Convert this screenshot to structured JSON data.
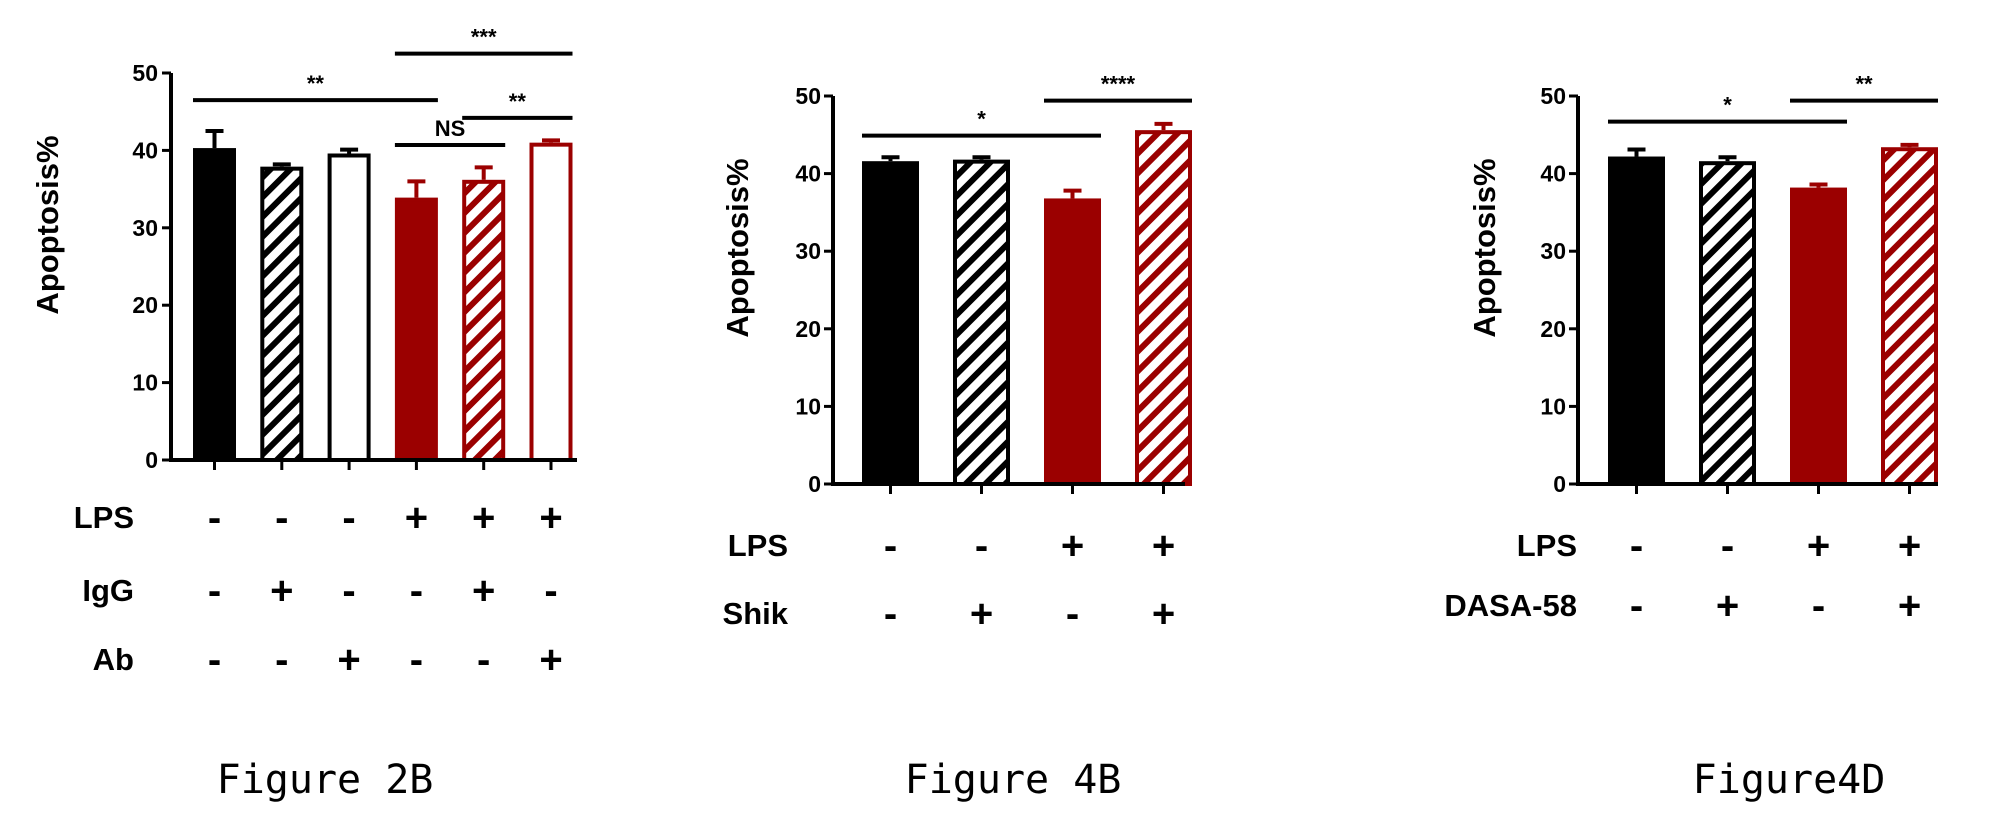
{
  "colors": {
    "black": "#000000",
    "red": "#9b0000",
    "white": "#ffffff"
  },
  "chart_data": [
    {
      "type": "bar",
      "caption": "Figure 2B",
      "ylabel": "Apoptosis%",
      "ylim": [
        0,
        50
      ],
      "yticks": [
        0,
        10,
        20,
        30,
        40,
        50
      ],
      "series": [
        {
          "values": [
            40.3,
            37.9,
            39.6,
            33.9,
            36.2,
            41.0
          ],
          "errors": [
            2.2,
            0.3,
            0.5,
            2.1,
            1.6,
            0.3
          ],
          "styles": [
            {
              "color": "#000000",
              "pattern": "solid"
            },
            {
              "color": "#000000",
              "pattern": "hatch"
            },
            {
              "color": "#000000",
              "pattern": "open"
            },
            {
              "color": "#9b0000",
              "pattern": "solid"
            },
            {
              "color": "#9b0000",
              "pattern": "hatch"
            },
            {
              "color": "#9b0000",
              "pattern": "open"
            }
          ]
        }
      ],
      "conditions": [
        {
          "label": "LPS",
          "signs": [
            "-",
            "-",
            "-",
            "+",
            "+",
            "+"
          ]
        },
        {
          "label": "IgG",
          "signs": [
            "-",
            "+",
            "-",
            "-",
            "+",
            "-"
          ]
        },
        {
          "label": "Ab",
          "signs": [
            "-",
            "-",
            "+",
            "-",
            "-",
            "+"
          ]
        }
      ],
      "comparisons": [
        {
          "from": 0,
          "to": 3,
          "y": 46.5,
          "label": "**"
        },
        {
          "from": 3,
          "to": 5,
          "y": 52.5,
          "label": "***"
        },
        {
          "from": 3,
          "to": 4,
          "y": 40.7,
          "label": "NS"
        },
        {
          "from": 4,
          "to": 5,
          "y": 44.2,
          "label": "**"
        }
      ]
    },
    {
      "type": "bar",
      "caption": "Figure 4B",
      "ylabel": "Apoptosis%",
      "ylim": [
        0,
        50
      ],
      "yticks": [
        0,
        10,
        20,
        30,
        40,
        50
      ],
      "series": [
        {
          "values": [
            41.6,
            41.8,
            36.8,
            45.6
          ],
          "errors": [
            0.5,
            0.3,
            1.0,
            0.8
          ],
          "styles": [
            {
              "color": "#000000",
              "pattern": "solid"
            },
            {
              "color": "#000000",
              "pattern": "hatch"
            },
            {
              "color": "#9b0000",
              "pattern": "solid"
            },
            {
              "color": "#9b0000",
              "pattern": "hatch"
            }
          ]
        }
      ],
      "conditions": [
        {
          "label": "LPS",
          "signs": [
            "-",
            "-",
            "+",
            "+"
          ]
        },
        {
          "label": "Shik",
          "signs": [
            "-",
            "+",
            "-",
            "+"
          ]
        }
      ],
      "comparisons": [
        {
          "from": 0,
          "to": 2,
          "y": 44.9,
          "label": "*"
        },
        {
          "from": 2,
          "to": 3,
          "y": 49.4,
          "label": "****"
        }
      ]
    },
    {
      "type": "bar",
      "caption": "Figure4D",
      "ylabel": "Apoptosis%",
      "ylim": [
        0,
        50
      ],
      "yticks": [
        0,
        10,
        20,
        30,
        40,
        50
      ],
      "series": [
        {
          "values": [
            42.2,
            41.6,
            38.2,
            43.4
          ],
          "errors": [
            0.9,
            0.5,
            0.4,
            0.3
          ],
          "styles": [
            {
              "color": "#000000",
              "pattern": "solid"
            },
            {
              "color": "#000000",
              "pattern": "hatch"
            },
            {
              "color": "#9b0000",
              "pattern": "solid"
            },
            {
              "color": "#9b0000",
              "pattern": "hatch"
            }
          ]
        }
      ],
      "conditions": [
        {
          "label": "LPS",
          "signs": [
            "-",
            "-",
            "+",
            "+"
          ]
        },
        {
          "label": "DASA-58",
          "signs": [
            "-",
            "+",
            "-",
            "+"
          ]
        }
      ],
      "comparisons": [
        {
          "from": 0,
          "to": 2,
          "y": 46.7,
          "label": "*"
        },
        {
          "from": 2,
          "to": 3,
          "y": 49.4,
          "label": "**"
        }
      ]
    }
  ]
}
